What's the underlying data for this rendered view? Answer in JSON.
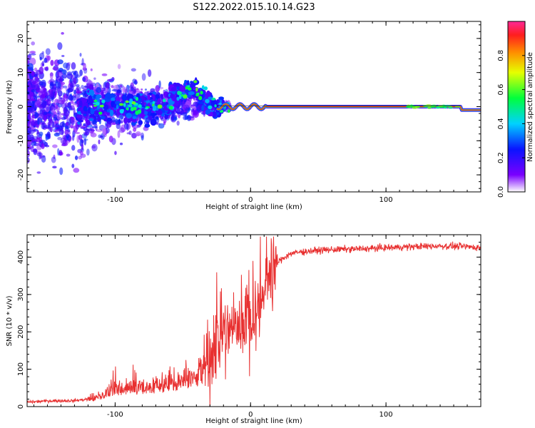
{
  "title": "S122.2022.015.10.14.G23",
  "chart_data": [
    {
      "type": "heatmap",
      "xlabel": "Height of straight line (km)",
      "ylabel": "Frequency (Hz)",
      "xlim": [
        -165,
        170
      ],
      "ylim": [
        -25,
        25
      ],
      "xticks": [
        -100,
        0,
        100
      ],
      "yticks": [
        -20,
        -10,
        0,
        10,
        20
      ],
      "colorbar": {
        "label": "Normalized spectral amplitude",
        "range": [
          0,
          1
        ],
        "ticks": [
          0.0,
          0.2,
          0.4,
          0.6,
          0.8
        ],
        "tick_labels": [
          "0.0",
          "0.2",
          "0.4",
          "0.6",
          "0.8"
        ]
      },
      "ridge": {
        "x": [
          -25,
          170
        ],
        "frequency_hz": 0,
        "amplitude": 1.0,
        "tail_frequency_hz": -1
      }
    },
    {
      "type": "line",
      "xlabel": "Height of straight line (km)",
      "ylabel": "SNR (10 * v/v)",
      "xlim": [
        -165,
        170
      ],
      "ylim": [
        0,
        460
      ],
      "xticks": [
        -100,
        0,
        100
      ],
      "yticks": [
        0,
        100,
        200,
        300,
        400
      ],
      "series": [
        {
          "color": "#e83030",
          "x": [
            -165,
            -150,
            -130,
            -120,
            -110,
            -100,
            -90,
            -80,
            -70,
            -60,
            -50,
            -40,
            -35,
            -30,
            -25,
            -20,
            -15,
            -10,
            -5,
            0,
            5,
            10,
            15,
            20,
            25,
            30,
            40,
            50,
            60,
            80,
            100,
            120,
            140,
            160,
            170
          ],
          "values": [
            12,
            15,
            16,
            20,
            30,
            45,
            48,
            50,
            55,
            62,
            68,
            80,
            95,
            130,
            175,
            200,
            210,
            220,
            225,
            235,
            265,
            310,
            350,
            385,
            400,
            410,
            415,
            418,
            420,
            422,
            425,
            428,
            430,
            428,
            425
          ]
        }
      ]
    }
  ]
}
